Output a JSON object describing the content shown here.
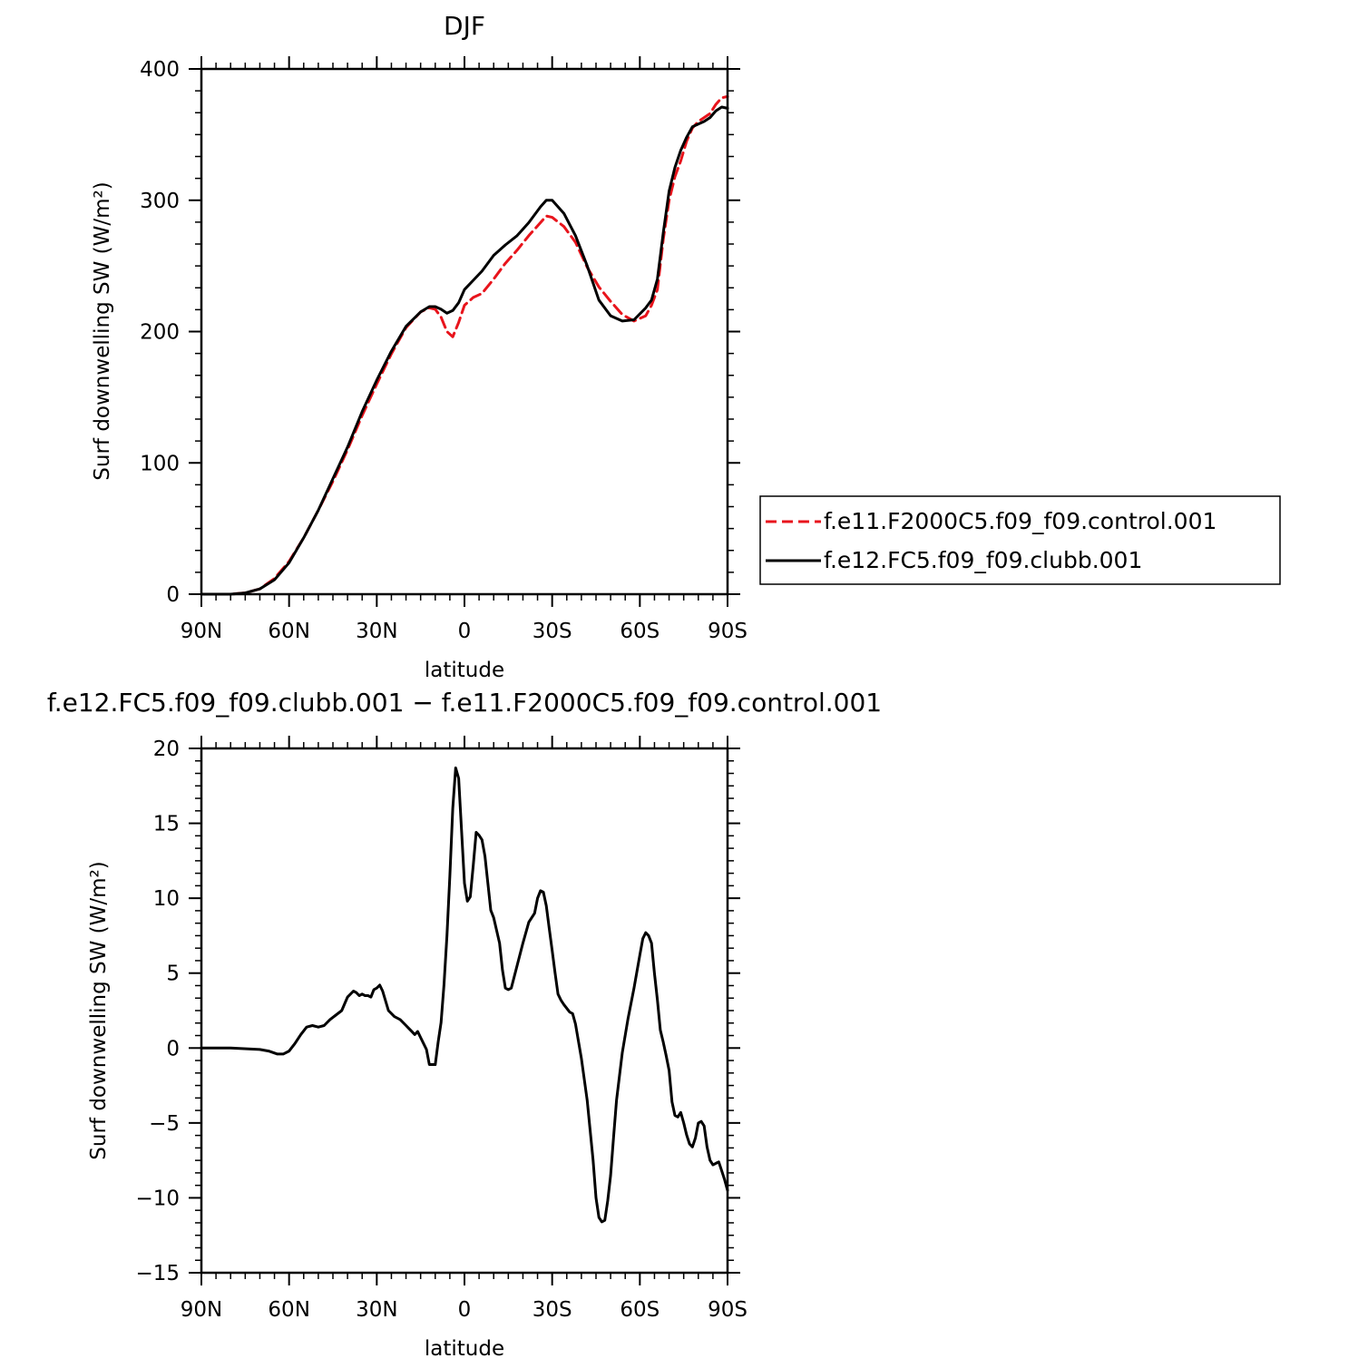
{
  "chart_data": [
    {
      "type": "line",
      "title": "DJF",
      "xlabel": "latitude",
      "ylabel": "Surf downwelling SW (W/m²)",
      "xlim": [
        -90,
        90
      ],
      "ylim": [
        0,
        400
      ],
      "x_ticks": [
        -90,
        -60,
        -30,
        0,
        30,
        60,
        90
      ],
      "x_tick_labels": [
        "90N",
        "60N",
        "30N",
        "0",
        "30S",
        "60S",
        "90S"
      ],
      "y_ticks": [
        0,
        100,
        200,
        300,
        400
      ],
      "y_tick_labels": [
        "0",
        "100",
        "200",
        "300",
        "400"
      ],
      "legend_position": "right",
      "series": [
        {
          "name": "f.e11.F2000C5.f09_f09.control.001",
          "color": "#e8141c",
          "dash": "dashed",
          "x": [
            -90,
            -80,
            -75,
            -70,
            -65,
            -60,
            -55,
            -50,
            -45,
            -40,
            -35,
            -30,
            -25,
            -20,
            -15,
            -12,
            -10,
            -8,
            -6,
            -4,
            -2,
            0,
            3,
            6,
            10,
            14,
            18,
            22,
            26,
            28,
            30,
            34,
            38,
            42,
            46,
            50,
            54,
            58,
            62,
            64,
            66,
            68,
            70,
            72,
            74,
            76,
            78,
            80,
            82,
            84,
            86,
            88,
            90
          ],
          "y": [
            0,
            0,
            1,
            4,
            12,
            25,
            43,
            64,
            86,
            110,
            136,
            160,
            183,
            203,
            215,
            218,
            217,
            211,
            200,
            196,
            207,
            220,
            226,
            229,
            240,
            252,
            262,
            273,
            283,
            288,
            287,
            280,
            268,
            249,
            234,
            223,
            213,
            208,
            212,
            220,
            232,
            270,
            300,
            318,
            330,
            345,
            355,
            360,
            363,
            366,
            373,
            378,
            379
          ]
        },
        {
          "name": "f.e12.FC5.f09_f09.clubb.001",
          "color": "#000000",
          "dash": "solid",
          "x": [
            -90,
            -80,
            -75,
            -70,
            -65,
            -60,
            -55,
            -50,
            -45,
            -40,
            -35,
            -30,
            -25,
            -20,
            -15,
            -12,
            -10,
            -8,
            -6,
            -4,
            -2,
            0,
            3,
            6,
            10,
            14,
            18,
            22,
            26,
            28,
            30,
            34,
            38,
            42,
            46,
            50,
            54,
            58,
            62,
            64,
            66,
            68,
            70,
            72,
            74,
            76,
            78,
            80,
            82,
            84,
            86,
            88,
            90
          ],
          "y": [
            0,
            0,
            1,
            4,
            11,
            24,
            43,
            64,
            88,
            112,
            139,
            163,
            185,
            204,
            215,
            219,
            219,
            217,
            214,
            216,
            222,
            232,
            239,
            246,
            258,
            266,
            273,
            283,
            295,
            300,
            300,
            290,
            273,
            250,
            224,
            212,
            208,
            209,
            218,
            224,
            240,
            275,
            307,
            325,
            338,
            348,
            356,
            358,
            360,
            363,
            368,
            371,
            370
          ]
        }
      ]
    },
    {
      "type": "line",
      "title": "f.e12.FC5.f09_f09.clubb.001 − f.e11.F2000C5.f09_f09.control.001",
      "xlabel": "latitude",
      "ylabel": "Surf downwelling SW (W/m²)",
      "xlim": [
        -90,
        90
      ],
      "ylim": [
        -15,
        20
      ],
      "x_ticks": [
        -90,
        -60,
        -30,
        0,
        30,
        60,
        90
      ],
      "x_tick_labels": [
        "90N",
        "60N",
        "30N",
        "0",
        "30S",
        "60S",
        "90S"
      ],
      "y_ticks": [
        -15,
        -10,
        -5,
        0,
        5,
        10,
        15,
        20
      ],
      "y_tick_labels": [
        "−15",
        "−10",
        "−5",
        "0",
        "5",
        "10",
        "15",
        "20"
      ],
      "series": [
        {
          "color": "#000000",
          "dash": "solid",
          "x": [
            -90,
            -80,
            -70,
            -67,
            -64,
            -62,
            -60,
            -58,
            -56,
            -54,
            -52,
            -50,
            -48,
            -46,
            -44,
            -42,
            -40,
            -38,
            -37,
            -36,
            -35,
            -34,
            -33,
            -32,
            -31,
            -30,
            -29,
            -28,
            -26,
            -24,
            -22,
            -20,
            -19,
            -18,
            -17,
            -16,
            -14,
            -13,
            -12,
            -11,
            -10,
            -9,
            -8,
            -7,
            -6,
            -5,
            -4,
            -3,
            -2,
            -1,
            0,
            1,
            2,
            3,
            4,
            5,
            6,
            7,
            8,
            9,
            10,
            12,
            13,
            14,
            15,
            16,
            18,
            20,
            22,
            24,
            25,
            26,
            27,
            28,
            29,
            30,
            31,
            32,
            33,
            34,
            36,
            37,
            38,
            40,
            42,
            44,
            45,
            46,
            47,
            48,
            49,
            50,
            51,
            52,
            54,
            56,
            58,
            60,
            61,
            62,
            63,
            64,
            65,
            66,
            67,
            68,
            69,
            70,
            71,
            72,
            73,
            74,
            75,
            76,
            77,
            78,
            79,
            80,
            81,
            82,
            83,
            84,
            85,
            86,
            87,
            88,
            89,
            90
          ],
          "y": [
            0,
            0,
            -0.1,
            -0.2,
            -0.4,
            -0.4,
            -0.2,
            0.3,
            0.9,
            1.4,
            1.5,
            1.4,
            1.5,
            1.9,
            2.2,
            2.5,
            3.4,
            3.8,
            3.7,
            3.5,
            3.6,
            3.5,
            3.5,
            3.4,
            3.9,
            4.0,
            4.2,
            3.8,
            2.5,
            2.1,
            1.9,
            1.5,
            1.3,
            1.1,
            0.9,
            1.1,
            0.3,
            -0.1,
            -1.1,
            -1.1,
            -1.1,
            0.4,
            1.7,
            4.2,
            7.5,
            11.5,
            16.0,
            18.7,
            18.0,
            14.5,
            11.0,
            9.8,
            10.1,
            12.2,
            14.4,
            14.2,
            13.9,
            12.8,
            11.0,
            9.2,
            8.7,
            7.0,
            5.2,
            4.0,
            3.9,
            4.0,
            5.5,
            7.0,
            8.4,
            9.0,
            10.0,
            10.5,
            10.4,
            9.5,
            8.0,
            6.5,
            5.0,
            3.6,
            3.2,
            2.9,
            2.4,
            2.3,
            1.6,
            -0.7,
            -3.5,
            -7.5,
            -10.0,
            -11.3,
            -11.6,
            -11.5,
            -10.2,
            -8.5,
            -6.0,
            -3.5,
            -0.3,
            2.0,
            4.0,
            6.2,
            7.3,
            7.7,
            7.5,
            7.0,
            5.0,
            3.2,
            1.2,
            0.4,
            -0.5,
            -1.5,
            -3.6,
            -4.5,
            -4.6,
            -4.3,
            -5.0,
            -5.8,
            -6.4,
            -6.6,
            -6.0,
            -5.0,
            -4.9,
            -5.2,
            -6.6,
            -7.5,
            -7.8,
            -7.7,
            -7.6,
            -8.2,
            -8.8,
            -9.5
          ]
        }
      ]
    }
  ]
}
